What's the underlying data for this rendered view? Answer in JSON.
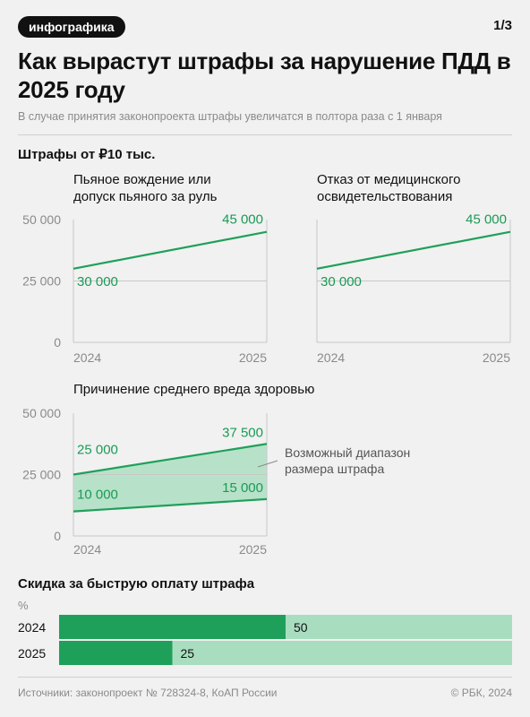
{
  "tag": "инфографика",
  "page": "1/3",
  "title": "Как вырастут штрафы за нарушение ПДД в 2025 году",
  "subtitle": "В случае принятия законопроекта штрафы увеличатся в полтора раза с 1 января",
  "section_fines": "Штрафы от ₽10 тыс.",
  "chart_data": [
    {
      "type": "line",
      "title": "Пьяное вождение или допуск пьяного за руль",
      "x": [
        "2024",
        "2025"
      ],
      "series": [
        {
          "values": [
            30000,
            45000
          ]
        }
      ],
      "data_labels": [
        "30 000",
        "45 000"
      ],
      "y_ticks": [
        "50 000",
        "25 000",
        "0"
      ],
      "ylim": [
        0,
        50000
      ]
    },
    {
      "type": "line",
      "title": "Отказ от медицинского освидетельствования",
      "x": [
        "2024",
        "2025"
      ],
      "series": [
        {
          "values": [
            30000,
            45000
          ]
        }
      ],
      "data_labels": [
        "30 000",
        "45 000"
      ],
      "ylim": [
        0,
        50000
      ]
    },
    {
      "type": "area",
      "title": "Причинение среднего вреда здоровью",
      "x": [
        "2024",
        "2025"
      ],
      "series": [
        {
          "values": [
            25000,
            37500
          ]
        },
        {
          "values": [
            10000,
            15000
          ]
        }
      ],
      "data_labels_upper": [
        "25 000",
        "37 500"
      ],
      "data_labels_lower": [
        "10 000",
        "15 000"
      ],
      "annotation": "Возможный диапазон размера штрафа",
      "y_ticks": [
        "50 000",
        "25 000",
        "0"
      ],
      "ylim": [
        0,
        50000
      ]
    },
    {
      "type": "bar",
      "title": "Скидка за быструю оплату штрафа",
      "unit": "%",
      "categories": [
        "2024",
        "2025"
      ],
      "values": [
        50,
        25
      ],
      "value_labels": [
        "50",
        "25"
      ],
      "xlim": [
        0,
        100
      ]
    }
  ],
  "source": "Источники: законопроект № 728324-8, КоАП России",
  "copyright": "© РБК, 2024",
  "colors": {
    "accent": "#1fa05a",
    "accent_text": "#1a9a55",
    "range_fill": "#b7e2c9",
    "bar_bg": "#a9ddc0",
    "axis": "#c8c8c8",
    "tick_text": "#8a8a8a"
  }
}
